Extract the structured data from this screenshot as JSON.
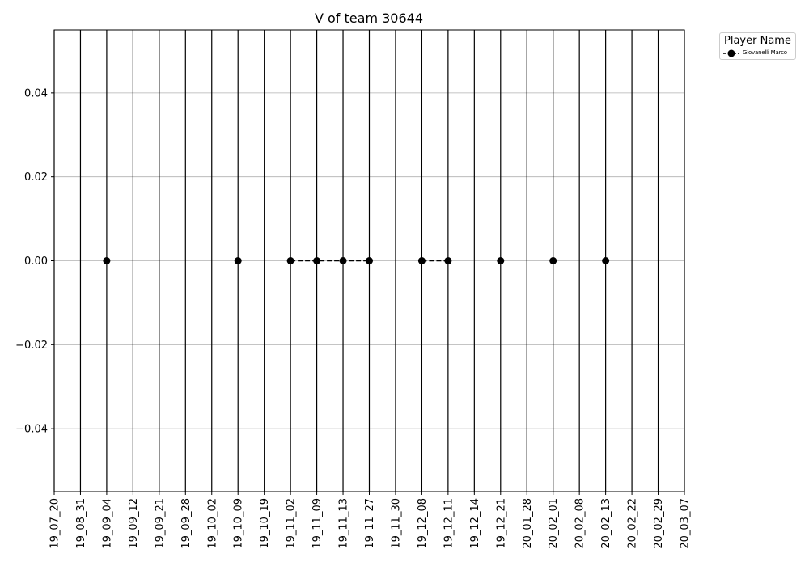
{
  "chart_data": {
    "type": "line",
    "title": "V of team 30644",
    "xlabel": "",
    "ylabel": "",
    "categories": [
      "19_07_20",
      "19_08_31",
      "19_09_04",
      "19_09_12",
      "19_09_21",
      "19_09_28",
      "19_10_02",
      "19_10_09",
      "19_10_19",
      "19_11_02",
      "19_11_09",
      "19_11_13",
      "19_11_27",
      "19_11_30",
      "19_12_08",
      "19_12_11",
      "19_12_14",
      "19_12_21",
      "20_01_28",
      "20_02_01",
      "20_02_08",
      "20_02_13",
      "20_02_22",
      "20_02_29",
      "20_03_07"
    ],
    "ylim": [
      -0.055,
      0.055
    ],
    "yticks": [
      -0.04,
      -0.02,
      0.0,
      0.02,
      0.04
    ],
    "ytick_labels": [
      "−0.04",
      "−0.02",
      "0.00",
      "0.02",
      "0.04"
    ],
    "grid": "y",
    "legend": {
      "title": "Player Name",
      "placement": "top-right outside"
    },
    "series": [
      {
        "name": "Giovanelli Marco",
        "color": "#000000",
        "linestyle": "dashed",
        "marker": "circle",
        "values": [
          null,
          null,
          0,
          null,
          null,
          null,
          null,
          0,
          null,
          0,
          0,
          0,
          0,
          null,
          0,
          0,
          null,
          0,
          null,
          0,
          null,
          0,
          null,
          null,
          null
        ]
      }
    ]
  }
}
